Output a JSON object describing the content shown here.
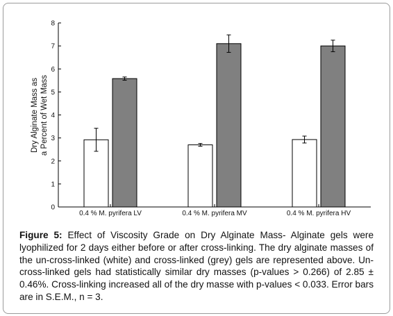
{
  "chart_data": {
    "type": "bar",
    "categories": [
      "0.4 % M. pyrifera LV",
      "0.4 % M. pyrifera MV",
      "0.4 % M. pyrifera HV"
    ],
    "series": [
      {
        "values": [
          2.92,
          2.7,
          2.93
        ],
        "errors": [
          0.5,
          0.06,
          0.15
        ],
        "color": "#ffffff"
      },
      {
        "values": [
          5.58,
          7.1,
          7.0
        ],
        "errors": [
          0.07,
          0.38,
          0.25
        ],
        "color": "#808080"
      }
    ],
    "ylabel_line1": "Dry Alginate Mass as",
    "ylabel_line2": "a Percent of Wet Mass",
    "ylim": [
      0,
      8
    ],
    "yticks": [
      "0",
      "1",
      "2",
      "3",
      "4",
      "5",
      "6",
      "7",
      "8"
    ],
    "grid": false
  },
  "caption": {
    "label": "Figure 5:",
    "text": "Effect of Viscosity Grade on Dry Alginate Mass- Alginate gels were lyophilized for 2 days either before or after cross-linking. The dry alginate masses of the un-cross-linked (white) and cross-linked (grey) gels are represented above. Un-cross-linked gels had statistically similar dry masses (p-values > 0.266) of 2.85 ± 0.46%. Cross-linking increased all of the dry masse with p-values < 0.033. Error bars are in S.E.M., n = 3."
  }
}
